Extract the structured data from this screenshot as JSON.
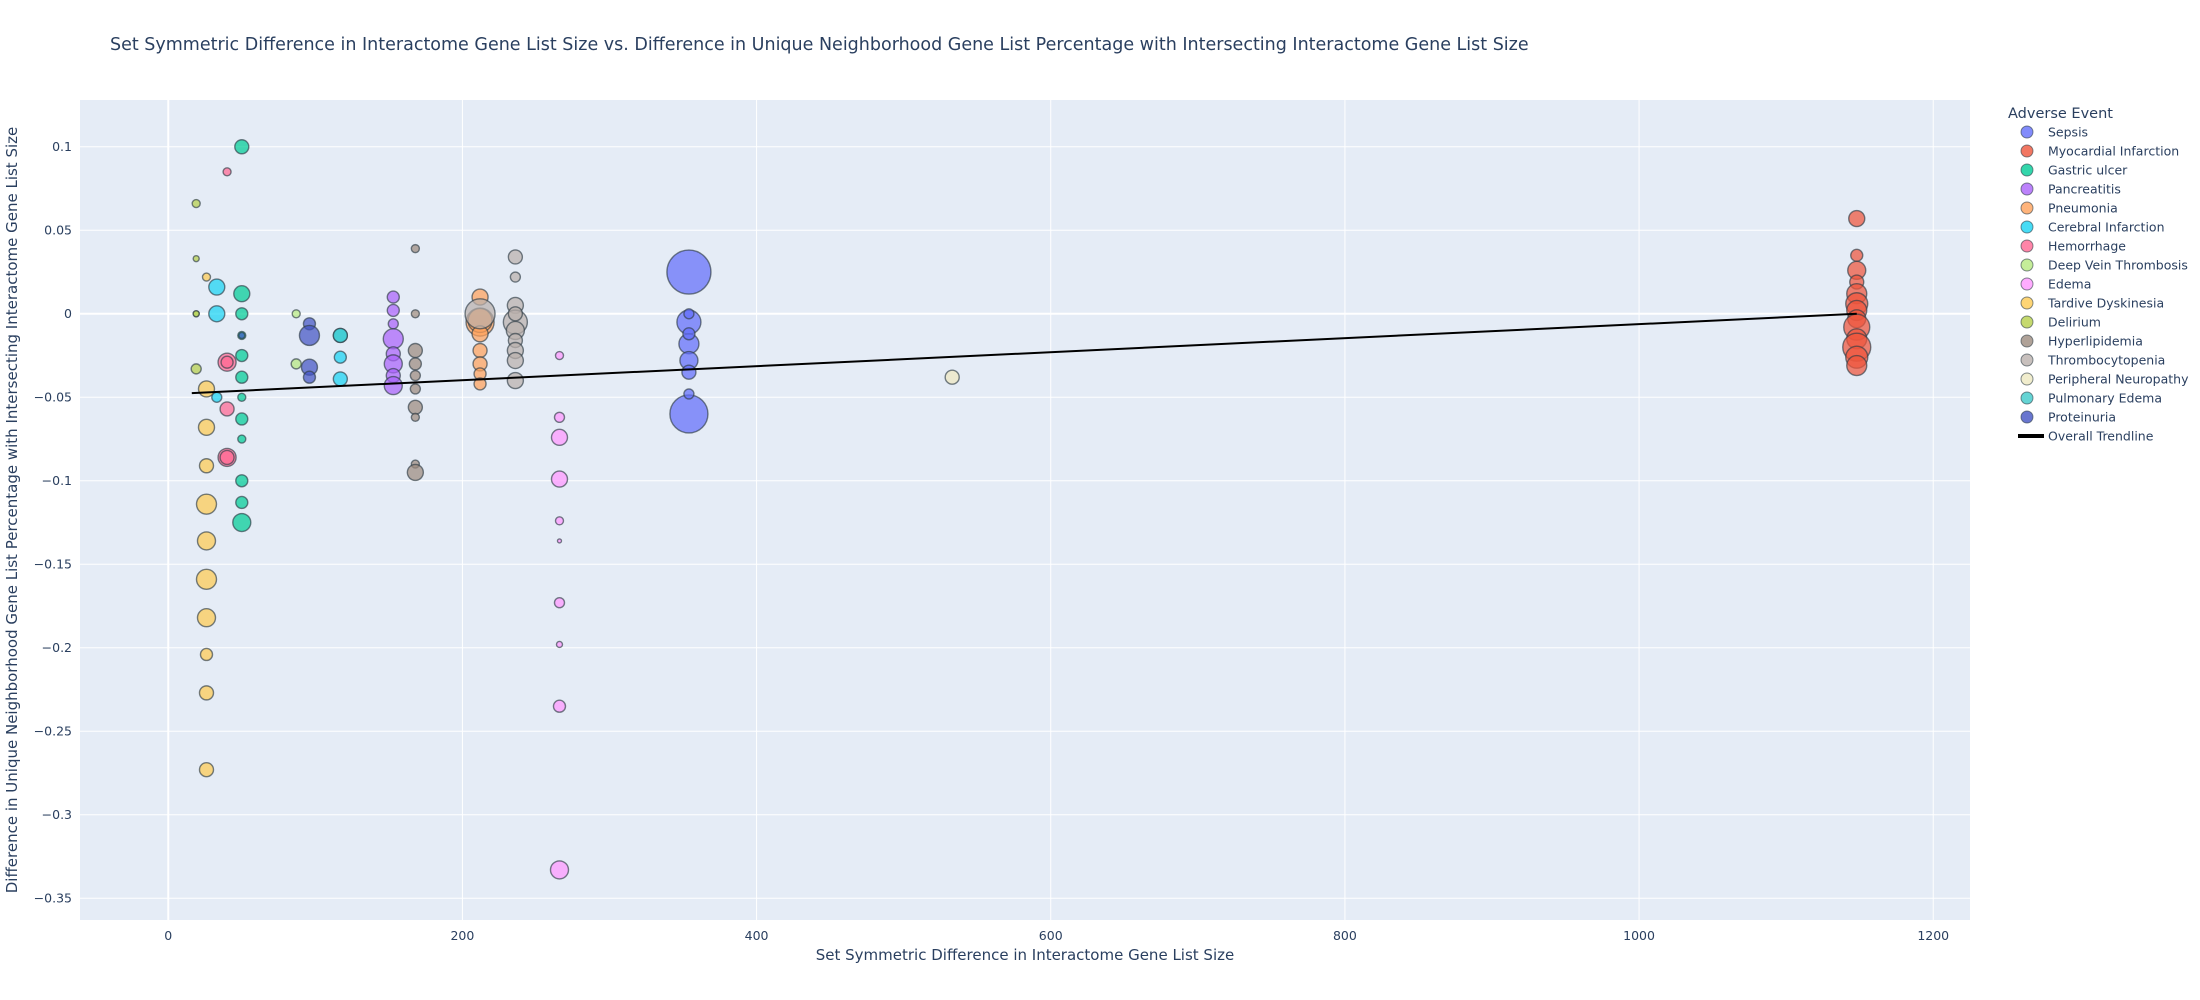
{
  "chart_data": {
    "type": "scatter",
    "title": "Set Symmetric Difference in Interactome Gene List Size  vs. Difference in Unique Neighborhood Gene List Percentage with Intersecting Interactome Gene List Size",
    "xlabel": "Set Symmetric Difference in Interactome Gene List Size",
    "ylabel": "Difference in Unique Neighborhood Gene List Percentage with Intersecting Interactome Gene List Size",
    "xlim": [
      -60,
      1225
    ],
    "ylim": [
      -0.363,
      0.128
    ],
    "x_ticks": [
      0,
      200,
      400,
      600,
      800,
      1000,
      1200
    ],
    "x_tick_labels": [
      "0",
      "200",
      "400",
      "600",
      "800",
      "1000",
      "1200"
    ],
    "y_ticks": [
      0.1,
      0.05,
      0,
      -0.05,
      -0.1,
      -0.15,
      -0.2,
      -0.25,
      -0.3,
      -0.35
    ],
    "y_tick_labels": [
      "0.1",
      "0.05",
      "0",
      "−0.05",
      "−0.1",
      "−0.15",
      "−0.2",
      "−0.25",
      "−0.3",
      "−0.35"
    ],
    "grid": true,
    "legend_title": "Adverse Event",
    "legend_position": "right",
    "series": [
      {
        "name": "Sepsis",
        "color": "#636efa",
        "points": [
          [
            354,
            0.025,
            22
          ],
          [
            354,
            -0.06,
            19
          ],
          [
            354,
            -0.005,
            12
          ],
          [
            354,
            -0.018,
            10
          ],
          [
            354,
            -0.028,
            9
          ],
          [
            354,
            -0.035,
            7
          ],
          [
            354,
            -0.048,
            5
          ],
          [
            354,
            0.0,
            5
          ],
          [
            354,
            -0.012,
            6
          ]
        ]
      },
      {
        "name": "Myocardial Infarction",
        "color": "#ef553b",
        "points": [
          [
            1148,
            0.057,
            8
          ],
          [
            1148,
            0.035,
            6
          ],
          [
            1148,
            0.026,
            9
          ],
          [
            1148,
            0.019,
            7
          ],
          [
            1148,
            0.012,
            10
          ],
          [
            1148,
            0.006,
            11
          ],
          [
            1148,
            0.002,
            10
          ],
          [
            1148,
            -0.003,
            9
          ],
          [
            1148,
            -0.008,
            13
          ],
          [
            1148,
            -0.015,
            10
          ],
          [
            1148,
            -0.02,
            14
          ],
          [
            1148,
            -0.026,
            11
          ],
          [
            1148,
            -0.031,
            10
          ]
        ]
      },
      {
        "name": "Gastric ulcer",
        "color": "#00cc96",
        "points": [
          [
            50,
            0.1,
            7
          ],
          [
            50,
            0.012,
            8
          ],
          [
            50,
            0.0,
            6
          ],
          [
            50,
            -0.013,
            4
          ],
          [
            50,
            -0.025,
            6
          ],
          [
            50,
            -0.038,
            6
          ],
          [
            50,
            -0.05,
            4
          ],
          [
            50,
            -0.063,
            6
          ],
          [
            50,
            -0.075,
            4
          ],
          [
            50,
            -0.1,
            6
          ],
          [
            50,
            -0.113,
            6
          ],
          [
            50,
            -0.125,
            9
          ]
        ]
      },
      {
        "name": "Pancreatitis",
        "color": "#ab63fa",
        "points": [
          [
            153,
            0.01,
            6
          ],
          [
            153,
            0.002,
            6
          ],
          [
            153,
            -0.006,
            5
          ],
          [
            153,
            -0.015,
            10
          ],
          [
            153,
            -0.024,
            7
          ],
          [
            153,
            -0.03,
            9
          ],
          [
            153,
            -0.037,
            7
          ],
          [
            153,
            -0.043,
            9
          ]
        ]
      },
      {
        "name": "Pneumonia",
        "color": "#ffa15a",
        "points": [
          [
            212,
            0.01,
            8
          ],
          [
            212,
            -0.005,
            14
          ],
          [
            212,
            -0.004,
            12
          ],
          [
            212,
            -0.012,
            8
          ],
          [
            212,
            -0.022,
            7
          ],
          [
            212,
            -0.03,
            7
          ],
          [
            212,
            -0.036,
            6
          ],
          [
            212,
            -0.042,
            6
          ]
        ]
      },
      {
        "name": "Cerebral Infarction",
        "color": "#19d3f3",
        "points": [
          [
            33,
            0.016,
            8
          ],
          [
            33,
            0.0,
            8
          ],
          [
            33,
            -0.05,
            5
          ],
          [
            117,
            -0.013,
            7
          ],
          [
            117,
            -0.026,
            6
          ],
          [
            117,
            -0.039,
            7
          ]
        ]
      },
      {
        "name": "Hemorrhage",
        "color": "#ff6692",
        "points": [
          [
            40,
            0.085,
            4
          ],
          [
            40,
            -0.029,
            9
          ],
          [
            40,
            -0.057,
            7
          ],
          [
            40,
            -0.086,
            9
          ],
          [
            40,
            -0.086,
            7
          ],
          [
            40,
            -0.029,
            6
          ]
        ]
      },
      {
        "name": "Deep Vein Thrombosis",
        "color": "#b6e880",
        "points": [
          [
            87,
            0.0,
            4
          ],
          [
            87,
            -0.03,
            5
          ],
          [
            19,
            0.0,
            3
          ]
        ]
      },
      {
        "name": "Edema",
        "color": "#ff97ff",
        "points": [
          [
            266,
            -0.025,
            4
          ],
          [
            266,
            -0.062,
            5
          ],
          [
            266,
            -0.074,
            8
          ],
          [
            266,
            -0.099,
            8
          ],
          [
            266,
            -0.124,
            4
          ],
          [
            266,
            -0.136,
            2
          ],
          [
            266,
            -0.173,
            5
          ],
          [
            266,
            -0.198,
            3
          ],
          [
            266,
            -0.235,
            6
          ],
          [
            266,
            -0.333,
            9
          ]
        ]
      },
      {
        "name": "Tardive Dyskinesia",
        "color": "#fecb52",
        "points": [
          [
            26,
            0.022,
            4
          ],
          [
            26,
            -0.045,
            8
          ],
          [
            26,
            -0.068,
            8
          ],
          [
            26,
            -0.091,
            7
          ],
          [
            26,
            -0.114,
            10
          ],
          [
            26,
            -0.136,
            9
          ],
          [
            26,
            -0.159,
            10
          ],
          [
            26,
            -0.182,
            9
          ],
          [
            26,
            -0.204,
            6
          ],
          [
            26,
            -0.227,
            7
          ],
          [
            26,
            -0.273,
            7
          ]
        ]
      },
      {
        "name": "Delirium",
        "color": "#b6cf4a",
        "points": [
          [
            19,
            0.066,
            4
          ],
          [
            19,
            0.033,
            3
          ],
          [
            19,
            -0.033,
            5
          ],
          [
            19,
            0.0,
            3
          ]
        ]
      },
      {
        "name": "Hyperlipidemia",
        "color": "#9c8b7e",
        "points": [
          [
            168,
            0.039,
            4
          ],
          [
            168,
            0.0,
            4
          ],
          [
            168,
            -0.022,
            7
          ],
          [
            168,
            -0.03,
            6
          ],
          [
            168,
            -0.037,
            5
          ],
          [
            168,
            -0.045,
            5
          ],
          [
            168,
            -0.056,
            7
          ],
          [
            168,
            -0.062,
            4
          ],
          [
            168,
            -0.09,
            4
          ],
          [
            168,
            -0.095,
            8
          ]
        ]
      },
      {
        "name": "Thrombocytopenia",
        "color": "#bab0ac",
        "points": [
          [
            212,
            0.0,
            15
          ],
          [
            236,
            0.034,
            7
          ],
          [
            236,
            0.022,
            5
          ],
          [
            236,
            0.005,
            8
          ],
          [
            236,
            -0.005,
            12
          ],
          [
            236,
            -0.01,
            9
          ],
          [
            236,
            -0.016,
            7
          ],
          [
            236,
            -0.022,
            8
          ],
          [
            236,
            -0.028,
            8
          ],
          [
            236,
            -0.04,
            8
          ],
          [
            236,
            0.0,
            7
          ]
        ]
      },
      {
        "name": "Peripheral Neuropathy",
        "color": "#eee8c0",
        "points": [
          [
            533,
            -0.038,
            7
          ]
        ]
      },
      {
        "name": "Pulmonary Edema",
        "color": "#3ec9c9",
        "points": [
          [
            117,
            -0.013,
            7
          ]
        ]
      },
      {
        "name": "Proteinuria",
        "color": "#4454c3",
        "points": [
          [
            96,
            -0.006,
            6
          ],
          [
            96,
            -0.013,
            10
          ],
          [
            96,
            -0.032,
            8
          ],
          [
            96,
            -0.038,
            6
          ],
          [
            50,
            -0.013,
            3
          ]
        ]
      }
    ],
    "trendline": {
      "name": "Overall Trendline",
      "color": "#000000",
      "x": [
        16,
        1148
      ],
      "y": [
        -0.0475,
        0.0
      ]
    }
  }
}
